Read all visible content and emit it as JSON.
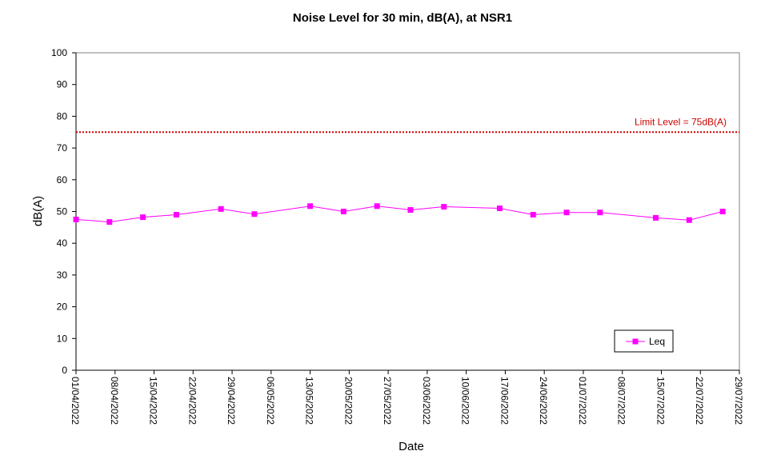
{
  "chart_data": {
    "type": "line",
    "title": "Noise Level for 30 min, dB(A), at NSR1",
    "xlabel": "Date",
    "ylabel": "dB(A)",
    "ylim": [
      0,
      100
    ],
    "yticks": [
      0,
      10,
      20,
      30,
      40,
      50,
      60,
      70,
      80,
      90,
      100
    ],
    "xlim": [
      "2022-04-01",
      "2022-07-29"
    ],
    "xticks": [
      "01/04/2022",
      "08/04/2022",
      "15/04/2022",
      "22/04/2022",
      "29/04/2022",
      "06/05/2022",
      "13/05/2022",
      "20/05/2022",
      "27/05/2022",
      "03/06/2022",
      "10/06/2022",
      "17/06/2022",
      "24/06/2022",
      "01/07/2022",
      "08/07/2022",
      "15/07/2022",
      "22/07/2022",
      "29/07/2022"
    ],
    "grid": false,
    "legend_position": "bottom-right",
    "series": [
      {
        "name": "Leq",
        "color": "#ff00ff",
        "marker": "square",
        "x": [
          "2022-04-01",
          "2022-04-07",
          "2022-04-13",
          "2022-04-19",
          "2022-04-27",
          "2022-05-03",
          "2022-05-13",
          "2022-05-19",
          "2022-05-25",
          "2022-05-31",
          "2022-06-06",
          "2022-06-16",
          "2022-06-22",
          "2022-06-28",
          "2022-07-04",
          "2022-07-14",
          "2022-07-20",
          "2022-07-26"
        ],
        "values": [
          47.5,
          46.7,
          48.2,
          49.0,
          50.8,
          49.2,
          51.7,
          50.0,
          51.7,
          50.5,
          51.5,
          51.0,
          49.0,
          49.7,
          49.7,
          48.0,
          47.3,
          50.0
        ]
      }
    ],
    "reference_line": {
      "value": 75,
      "label": "Limit Level  = 75dB(A)",
      "color": "#cc0000",
      "style": "dotted"
    }
  }
}
